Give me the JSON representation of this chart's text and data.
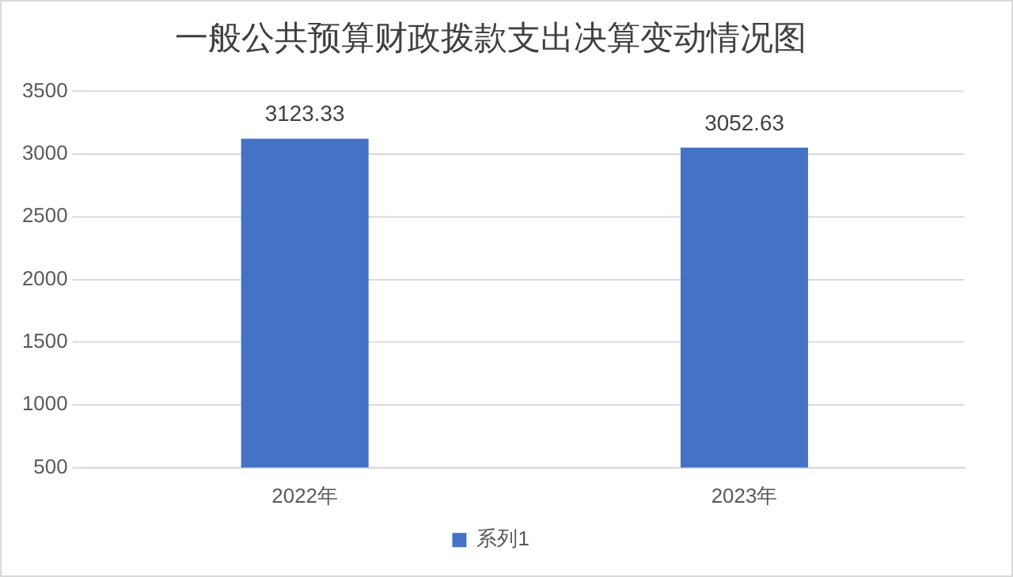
{
  "chart_data": {
    "type": "bar",
    "title": "一般公共预算财政拨款支出决算变动情况图",
    "categories": [
      "2022年",
      "2023年"
    ],
    "series": [
      {
        "name": "系列1",
        "color": "#4472c4",
        "values": [
          3123.33,
          3052.63
        ]
      }
    ],
    "ylim": [
      500,
      3500
    ],
    "yticks": [
      500,
      1000,
      1500,
      2000,
      2500,
      3000,
      3500
    ],
    "grid": "y",
    "legend": "bottom",
    "data_labels": true
  }
}
